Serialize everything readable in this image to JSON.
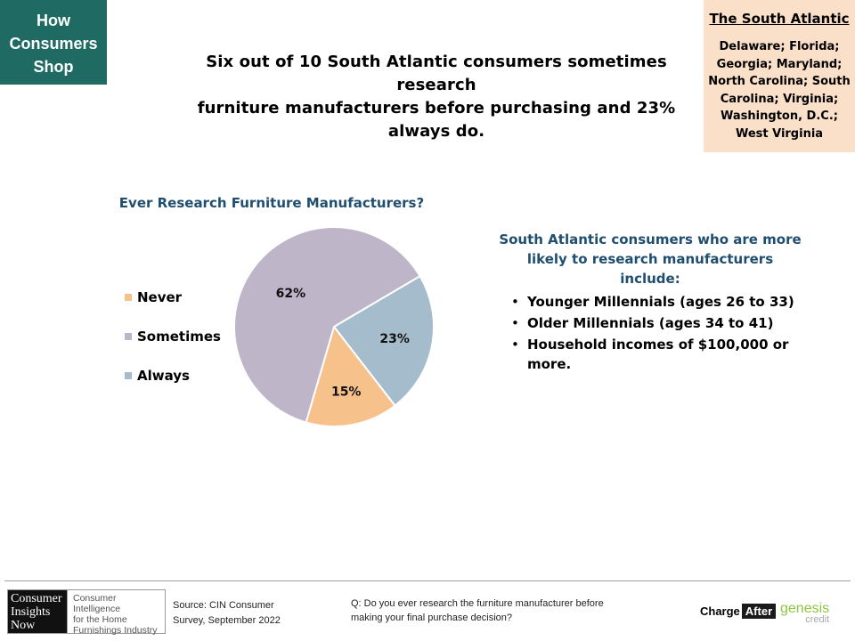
{
  "tag": {
    "lines": [
      "How",
      "Consumers",
      "Shop"
    ]
  },
  "headline": {
    "lines": [
      "Six out of 10 South Atlantic consumers sometimes research",
      "furniture manufacturers before purchasing and 23% always do."
    ]
  },
  "region": {
    "title": "The South Atlantic",
    "lines": [
      "Delaware; Florida;",
      "Georgia; Maryland;",
      "North Carolina; South",
      "Carolina; Virginia;",
      "Washington, D.C.;",
      "West Virginia"
    ]
  },
  "chart_data": {
    "type": "pie",
    "title": "Ever Research Furniture Manufacturers?",
    "legend_position": "left",
    "slices": [
      {
        "name": "Never",
        "value": 15,
        "label": "15%",
        "color": "#f7c18c"
      },
      {
        "name": "Sometimes",
        "value": 62,
        "label": "62%",
        "color": "#bfb5c9"
      },
      {
        "name": "Always",
        "value": 23,
        "label": "23%",
        "color": "#a5bccd"
      }
    ]
  },
  "insight": {
    "title_lines": [
      "South Atlantic consumers who are more",
      "likely to research manufacturers include:"
    ],
    "bullets": [
      "Younger Millennials (ages 26 to 33)",
      "Older Millennials (ages 34 to 41)",
      "Household incomes of $100,000 or more."
    ]
  },
  "footer": {
    "logo_cin": {
      "dark_lines": [
        "Consumer",
        "Insights",
        "Now"
      ],
      "light_lines": [
        "Consumer Intelligence",
        "for the Home",
        "Furnishings Industry"
      ]
    },
    "source_lines": [
      "Source: CIN Consumer",
      "Survey, September  2022"
    ],
    "question_lines": [
      "Q: Do you ever  research the furniture manufacturer before",
      "making your final purchase decision?"
    ],
    "charge_after": {
      "part1": "Charge",
      "part2": "After"
    },
    "genesis": {
      "name": "genesis",
      "sub": "credit"
    }
  }
}
